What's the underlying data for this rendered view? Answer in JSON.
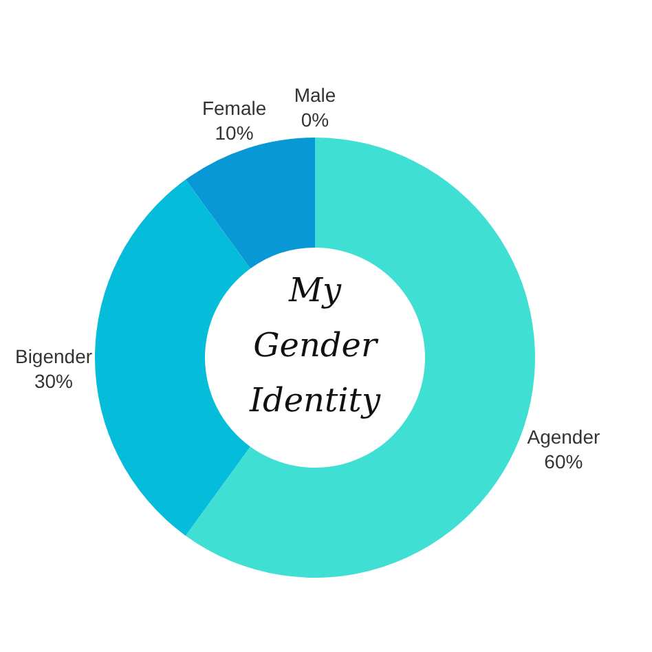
{
  "chart_data": {
    "type": "donut",
    "title": "My Gender Identity",
    "categories": [
      "Agender",
      "Bigender",
      "Female",
      "Male"
    ],
    "values": [
      60,
      30,
      10,
      0
    ],
    "colors": [
      "#3fe0d3",
      "#05bddb",
      "#0898d6",
      "#0a6fb8"
    ],
    "value_labels": [
      "60%",
      "30%",
      "10%",
      "0%"
    ]
  }
}
